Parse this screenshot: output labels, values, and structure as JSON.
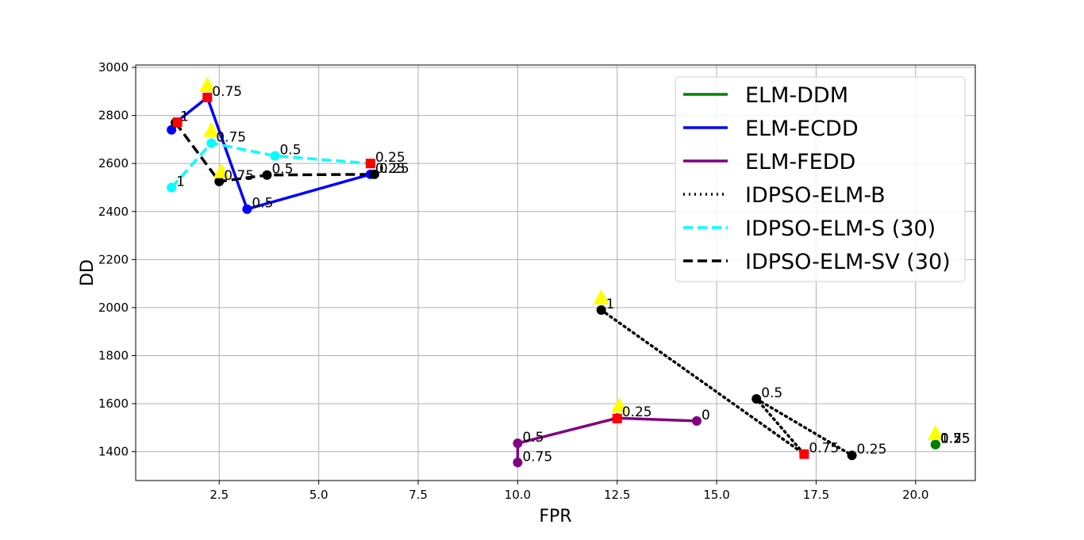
{
  "chart_data": {
    "type": "line",
    "title": "",
    "xlabel": "FPR",
    "ylabel": "DD",
    "xlim": [
      0.4,
      21.5
    ],
    "ylim": [
      1280,
      3010
    ],
    "xticks": [
      2.5,
      5.0,
      7.5,
      10.0,
      12.5,
      15.0,
      17.5,
      20.0
    ],
    "xtick_labels": [
      "2.5",
      "5.0",
      "7.5",
      "10.0",
      "12.5",
      "15.0",
      "17.5",
      "20.0"
    ],
    "yticks": [
      1400,
      1600,
      1800,
      2000,
      2200,
      2400,
      2600,
      2800,
      3000
    ],
    "ytick_labels": [
      "1400",
      "1600",
      "1800",
      "2000",
      "2200",
      "2400",
      "2600",
      "2800",
      "3000"
    ],
    "grid": true,
    "legend_position": "top-right",
    "series": [
      {
        "name": "ELM-DDM",
        "color": "#008000",
        "dash": "solid",
        "points": [
          {
            "x": 20.5,
            "y": 1430,
            "label": "0"
          },
          {
            "x": 20.5,
            "y": 1430,
            "label": "1"
          },
          {
            "x": 20.5,
            "y": 1430,
            "label": "0.5"
          },
          {
            "x": 20.5,
            "y": 1430,
            "label": "0.25"
          },
          {
            "x": 20.5,
            "y": 1430,
            "label": "0.75"
          }
        ]
      },
      {
        "name": "ELM-ECDD",
        "color": "#0000ff",
        "dash": "solid",
        "points": [
          {
            "x": 1.3,
            "y": 2740,
            "label": ""
          },
          {
            "x": 1.4,
            "y": 2770,
            "label": "1"
          },
          {
            "x": 2.2,
            "y": 2875,
            "label": "0.75"
          },
          {
            "x": 3.2,
            "y": 2410,
            "label": "0.5"
          },
          {
            "x": 6.3,
            "y": 2555,
            "label": "0.25"
          }
        ]
      },
      {
        "name": "ELM-FEDD",
        "color": "#800080",
        "dash": "solid",
        "points": [
          {
            "x": 10.0,
            "y": 1355,
            "label": "0.75"
          },
          {
            "x": 10.0,
            "y": 1435,
            "label": "0.5"
          },
          {
            "x": 12.5,
            "y": 1540,
            "label": "0.25"
          },
          {
            "x": 14.5,
            "y": 1528,
            "label": "0"
          }
        ]
      },
      {
        "name": "IDPSO-ELM-B",
        "color": "#000000",
        "dash": "dotted",
        "points": [
          {
            "x": 12.1,
            "y": 1990,
            "label": "1"
          },
          {
            "x": 17.2,
            "y": 1390,
            "label": "0.75"
          },
          {
            "x": 16.0,
            "y": 1620,
            "label": "0.5"
          },
          {
            "x": 18.4,
            "y": 1385,
            "label": "0.25"
          }
        ]
      },
      {
        "name": "IDPSO-ELM-S (30)",
        "color": "#00ffff",
        "dash": "dashed",
        "points": [
          {
            "x": 1.3,
            "y": 2500,
            "label": "1"
          },
          {
            "x": 2.3,
            "y": 2685,
            "label": "0.75"
          },
          {
            "x": 3.9,
            "y": 2632,
            "label": "0.5"
          },
          {
            "x": 6.3,
            "y": 2600,
            "label": "0.25"
          }
        ]
      },
      {
        "name": "IDPSO-ELM-SV (30)",
        "color": "#000000",
        "dash": "dashed",
        "points": [
          {
            "x": 1.4,
            "y": 2770,
            "label": ""
          },
          {
            "x": 2.5,
            "y": 2525,
            "label": "0.75"
          },
          {
            "x": 3.7,
            "y": 2552,
            "label": "0.5"
          },
          {
            "x": 6.4,
            "y": 2555,
            "label": "0.25"
          }
        ]
      }
    ],
    "best_markers": {
      "description_color_square": "#ff0000",
      "description_color_triangle": "#ffff00",
      "squares": [
        {
          "x": 1.45,
          "y": 2772
        },
        {
          "x": 2.2,
          "y": 2875
        },
        {
          "x": 6.3,
          "y": 2600
        },
        {
          "x": 12.5,
          "y": 1538
        },
        {
          "x": 17.2,
          "y": 1390
        }
      ],
      "triangles": [
        {
          "x": 2.2,
          "y": 2925
        },
        {
          "x": 2.3,
          "y": 2737
        },
        {
          "x": 2.55,
          "y": 2565
        },
        {
          "x": 12.1,
          "y": 2040
        },
        {
          "x": 12.55,
          "y": 1590
        },
        {
          "x": 20.5,
          "y": 1475
        }
      ]
    }
  }
}
